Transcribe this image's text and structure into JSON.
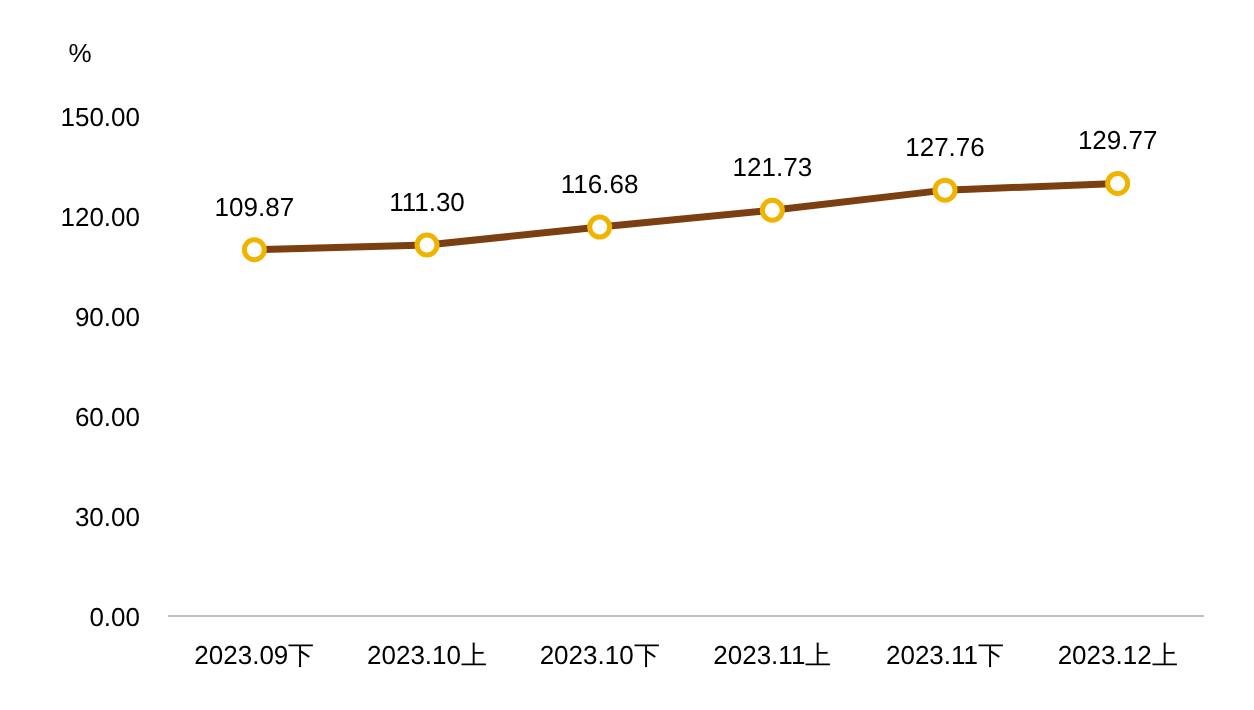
{
  "chart_data": {
    "type": "line",
    "ylabel": "%",
    "categories": [
      "2023.09下",
      "2023.10上",
      "2023.10下",
      "2023.11上",
      "2023.11下",
      "2023.12上"
    ],
    "series": [
      {
        "color": "#7b3f12",
        "values": [
          109.87,
          111.3,
          116.68,
          121.73,
          127.76,
          129.77
        ]
      }
    ],
    "value_labels": [
      "109.87",
      "111.30",
      "116.68",
      "121.73",
      "127.76",
      "129.77"
    ],
    "ylim": [
      0,
      150
    ],
    "yticks": [
      {
        "value": 0,
        "label": "0.00"
      },
      {
        "value": 30,
        "label": "30.00"
      },
      {
        "value": 60,
        "label": "60.00"
      },
      {
        "value": 90,
        "label": "90.00"
      },
      {
        "value": 120,
        "label": "120.00"
      },
      {
        "value": 150,
        "label": "150.00"
      }
    ],
    "marker": "circle",
    "line_style": "solid",
    "grid": false
  }
}
